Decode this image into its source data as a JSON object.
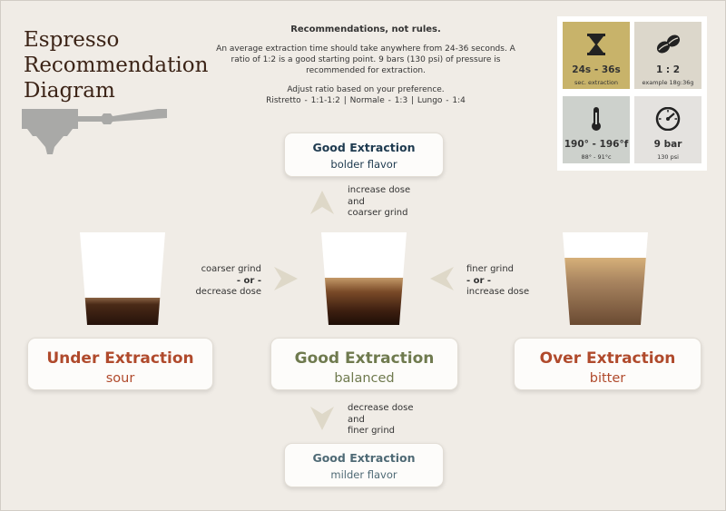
{
  "title": [
    "Espresso",
    "Recommendation",
    "Diagram"
  ],
  "intro": {
    "heading": "Recommendations, not rules.",
    "paragraph": "An average extraction time should take anywhere from 24-36 seconds. A ratio of 1:2 is a good starting point. 9 bars (130 psi) of pressure is recommended for extraction.",
    "adjust": "Adjust ratio based on your preference.",
    "ratios": "Ristretto - 1:1-1:2  |  Normale - 1:3  |  Lungo - 1:4"
  },
  "stats": [
    {
      "icon": "hourglass-icon",
      "value": "24s - 36s",
      "sub": "sec. extraction",
      "color": "#c8b36a"
    },
    {
      "icon": "coffee-beans-icon",
      "value": "1 : 2",
      "sub": "example 18g:36g",
      "color": "#dcd7cb"
    },
    {
      "icon": "thermometer-icon",
      "value": "190° - 196°f",
      "sub": "88° - 91°c",
      "color": "#cdd1cc"
    },
    {
      "icon": "pressure-gauge-icon",
      "value": "9 bar",
      "sub": "130 psi",
      "color": "#e4e2df"
    }
  ],
  "top_box": {
    "title": "Good Extraction",
    "subtitle": "bolder flavor"
  },
  "bottom_box": {
    "title": "Good Extraction",
    "subtitle": "milder flavor"
  },
  "under_box": {
    "title": "Under Extraction",
    "subtitle": "sour"
  },
  "good_box": {
    "title": "Good Extraction",
    "subtitle": "balanced"
  },
  "over_box": {
    "title": "Over Extraction",
    "subtitle": "bitter"
  },
  "notes": {
    "up": [
      "increase dose",
      "and",
      "coarser grind"
    ],
    "down": [
      "decrease dose",
      "and",
      "finer grind"
    ],
    "left": [
      "coarser grind",
      "- or -",
      "decrease dose"
    ],
    "right": [
      "finer grind",
      "- or -",
      "increase dose"
    ]
  },
  "colors": {
    "dark_brown": "#3b2316",
    "navy": "#1e3a4f",
    "teal_gray": "#4f6a75",
    "rust": "#b04a2c",
    "olive": "#6f7a4e",
    "arrow": "#ded8c8"
  }
}
